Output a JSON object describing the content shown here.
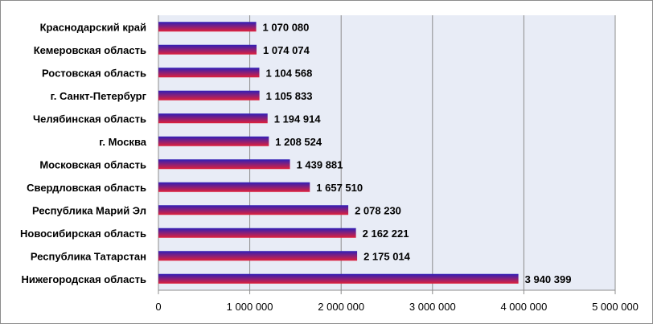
{
  "chart_data": {
    "type": "bar",
    "orientation": "horizontal",
    "title": "",
    "xlabel": "",
    "ylabel": "",
    "categories": [
      "Краснодарский край",
      "Кемеровская область",
      "Ростовская область",
      "г. Санкт-Петербург",
      "Челябинская область",
      "г. Москва",
      "Московская область",
      "Свердловская область",
      "Республика Марий Эл",
      "Новосибирская область",
      "Республика Татарстан",
      "Нижегородская область"
    ],
    "values": [
      1070080,
      1074074,
      1104568,
      1105833,
      1194914,
      1208524,
      1439881,
      1657510,
      2078230,
      2162221,
      2175014,
      3940399
    ],
    "value_labels": [
      "1 070 080",
      "1 074 074",
      "1 104 568",
      "1 105 833",
      "1 194 914",
      "1 208 524",
      "1 439 881",
      "1 657 510",
      "2 078 230",
      "2 162 221",
      "2 175 014",
      "3 940 399"
    ],
    "xlim": [
      0,
      5000000
    ],
    "x_ticks": [
      0,
      1000000,
      2000000,
      3000000,
      4000000,
      5000000
    ],
    "x_tick_labels": [
      "0",
      "1 000 000",
      "2 000 000",
      "3 000 000",
      "4 000 000",
      "5 000 000"
    ],
    "grid": true,
    "legend": "none",
    "colors": {
      "plot_background": "#e8ecf6",
      "gridline": "#8c8c8c",
      "bar_top": "#2f1fb8",
      "bar_bottom": "#e0203a"
    }
  }
}
